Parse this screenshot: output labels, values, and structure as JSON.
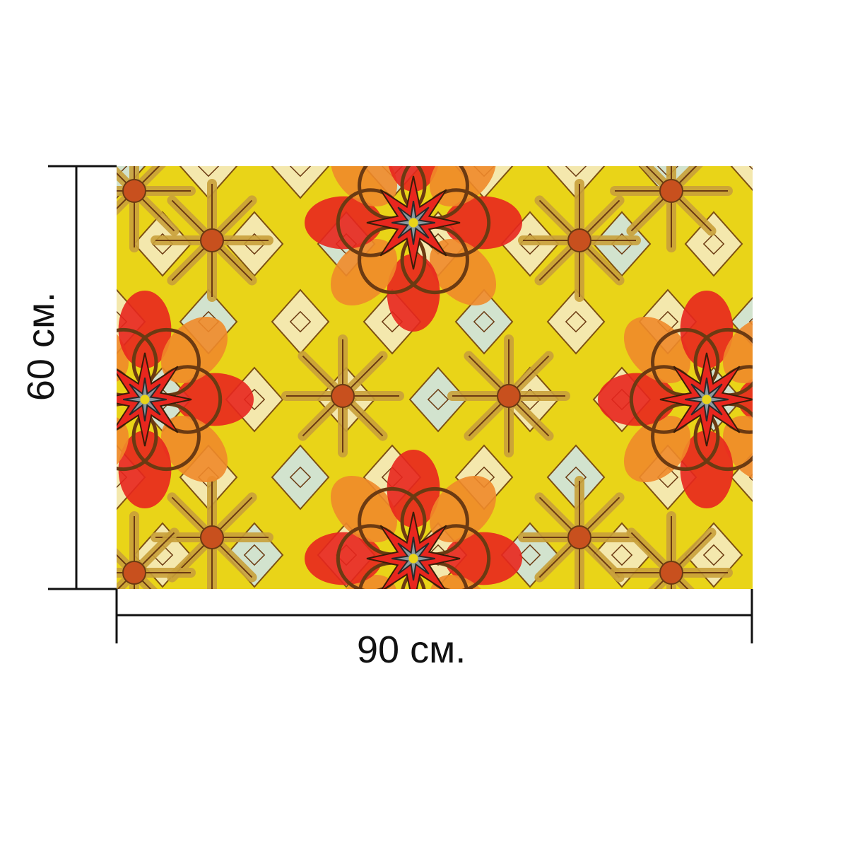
{
  "dimensions": {
    "width_label": "90 см.",
    "height_label": "60 см."
  },
  "product": {
    "pattern": "kaleidoscope-mandala",
    "colors": {
      "red": "#e8261e",
      "orange": "#f08a2a",
      "yellow": "#e9d418",
      "gold": "#c9a13a",
      "brown": "#6b3a12",
      "pale_blue": "#cfe6ee",
      "cream": "#f6ecc8"
    }
  }
}
